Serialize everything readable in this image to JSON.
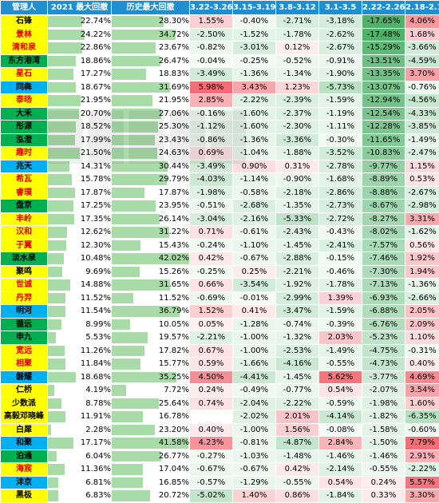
{
  "headers": [
    "管理人",
    "2021 最大回撤",
    "历史最大回撤",
    "3.22-3.26",
    "3.15-3.19",
    "3.8-3.12",
    "3.1-3.5",
    "2.22-2.26",
    "2.18-2.19"
  ],
  "colors": {
    "header_bg": "#1f8fcf",
    "mgr_yellow": "#ffff00",
    "mgr_green": "#00b050",
    "mgr_cyan": "#00b0f0",
    "bar_green": "#a8dba8"
  },
  "rows": [
    {
      "name": "石锋",
      "name_bg": "yellow",
      "name_color": "#000000",
      "dd2021": "22.74%",
      "dd2021_v": 22.74,
      "ddhist": "28.30%",
      "ddhist_v": 28.3,
      "w": [
        "1.55%",
        "-0.40%",
        "-2.71%",
        "-3.18%",
        "-17.65%",
        "4.06%"
      ]
    },
    {
      "name": "景林",
      "name_bg": "yellow",
      "name_color": "#e00000",
      "dd2021": "24.22%",
      "dd2021_v": 24.22,
      "ddhist": "34.72%",
      "ddhist_v": 34.72,
      "w": [
        "-2.50%",
        "-1.52%",
        "-1.78%",
        "-2.62%",
        "-17.48%",
        "1.68%"
      ]
    },
    {
      "name": "清和泉",
      "name_bg": "yellow",
      "name_color": "#e00000",
      "dd2021": "22.86%",
      "dd2021_v": 22.86,
      "ddhist": "23.67%",
      "ddhist_v": 23.67,
      "w": [
        "-0.82%",
        "-3.01%",
        "0.12%",
        "-2.67%",
        "-15.29%",
        "-3.66%"
      ]
    },
    {
      "name": "东方港湾",
      "name_bg": "green",
      "name_color": "#000000",
      "dd2021": "18.86%",
      "dd2021_v": 18.86,
      "ddhist": "26.47%",
      "ddhist_v": 26.47,
      "w": [
        "-0.04%",
        "-0.25%",
        "-0.52%",
        "-0.91%",
        "-13.51%",
        "-4.59%"
      ]
    },
    {
      "name": "星石",
      "name_bg": "yellow",
      "name_color": "#e00000",
      "dd2021": "17.27%",
      "dd2021_v": 17.27,
      "ddhist": "18.83%",
      "ddhist_v": 18.83,
      "w": [
        "-3.49%",
        "-1.36%",
        "-1.34%",
        "-1.90%",
        "-13.35%",
        "3.70%"
      ]
    },
    {
      "name": "同犇",
      "name_bg": "cyan",
      "name_color": "#000000",
      "dd2021": "18.67%",
      "dd2021_v": 18.67,
      "ddhist": "31.69%",
      "ddhist_v": 31.69,
      "w": [
        "5.98%",
        "3.43%",
        "1.23%",
        "-5.73%",
        "-13.07%",
        "-0.76%"
      ]
    },
    {
      "name": "泰旸",
      "name_bg": "yellow",
      "name_color": "#e00000",
      "dd2021": "21.95%",
      "dd2021_v": 21.95,
      "ddhist": "21.95%",
      "ddhist_v": 21.95,
      "w": [
        "2.85%",
        "-2.22%",
        "-2.39%",
        "-1.59%",
        "-12.94%",
        "-4.56%"
      ]
    },
    {
      "name": "大禾",
      "name_bg": "green",
      "name_color": "#000000",
      "dd2021": "20.70%",
      "dd2021_v": 20.7,
      "ddhist": "27.06%",
      "ddhist_v": 27.06,
      "w": [
        "-0.16%",
        "-1.60%",
        "-2.37%",
        "-1.19%",
        "-12.54%",
        "-4.33%"
      ]
    },
    {
      "name": "彤源",
      "name_bg": "green",
      "name_color": "#000000",
      "dd2021": "18.52%",
      "dd2021_v": 18.52,
      "ddhist": "25.30%",
      "ddhist_v": 25.3,
      "w": [
        "-1.12%",
        "-1.60%",
        "-2.30%",
        "-1.11%",
        "-12.28%",
        "-3.85%"
      ]
    },
    {
      "name": "泓澄",
      "name_bg": "green",
      "name_color": "#000000",
      "dd2021": "17.99%",
      "dd2021_v": 17.99,
      "ddhist": "23.43%",
      "ddhist_v": 23.43,
      "w": [
        "-0.86%",
        "-1.36%",
        "-3.36%",
        "-0.30%",
        "-11.65%",
        "-1.49%"
      ]
    },
    {
      "name": "趣时",
      "name_bg": "yellow",
      "name_color": "#e00000",
      "dd2021": "21.50%",
      "dd2021_v": 21.5,
      "ddhist": "24.63%",
      "ddhist_v": 24.63,
      "w": [
        "0.69%",
        "-1.04%",
        "-1.88%",
        "-3.52%",
        "-10.83%",
        "-2.47%"
      ]
    },
    {
      "name": "兆天",
      "name_bg": "cyan",
      "name_color": "#000000",
      "dd2021": "14.31%",
      "dd2021_v": 14.31,
      "ddhist": "30.44%",
      "ddhist_v": 30.44,
      "w": [
        "-3.49%",
        "0.90%",
        "0.31%",
        "-2.78%",
        "-9.77%",
        "1.15%"
      ]
    },
    {
      "name": "希瓦",
      "name_bg": "yellow",
      "name_color": "#e00000",
      "dd2021": "15.78%",
      "dd2021_v": 15.78,
      "ddhist": "29.79%",
      "ddhist_v": 29.79,
      "w": [
        "-4.03%",
        "-1.14%",
        "-0.90%",
        "-1.68%",
        "-8.89%",
        "0.53%"
      ]
    },
    {
      "name": "睿璞",
      "name_bg": "yellow",
      "name_color": "#e00000",
      "dd2021": "17.87%",
      "dd2021_v": 17.87,
      "ddhist": "17.87%",
      "ddhist_v": 17.87,
      "w": [
        "-1.98%",
        "-0.58%",
        "-2.18%",
        "-2.86%",
        "-8.88%",
        "-2.67%"
      ]
    },
    {
      "name": "盘京",
      "name_bg": "green",
      "name_color": "#000000",
      "dd2021": "17.25%",
      "dd2021_v": 17.25,
      "ddhist": "23.95%",
      "ddhist_v": 23.95,
      "w": [
        "-0.51%",
        "-2.68%",
        "-1.35%",
        "-2.73%",
        "-8.67%",
        "-2.98%"
      ]
    },
    {
      "name": "丰岭",
      "name_bg": "yellow",
      "name_color": "#e00000",
      "dd2021": "17.35%",
      "dd2021_v": 17.35,
      "ddhist": "26.14%",
      "ddhist_v": 26.14,
      "w": [
        "-3.04%",
        "-2.16%",
        "-5.33%",
        "-2.72%",
        "-8.27%",
        "3.31%"
      ]
    },
    {
      "name": "汉和",
      "name_bg": "yellow",
      "name_color": "#e00000",
      "dd2021": "12.62%",
      "dd2021_v": 12.62,
      "ddhist": "31.22%",
      "ddhist_v": 31.22,
      "w": [
        "0.71%",
        "-0.61%",
        "-2.43%",
        "-0.43%",
        "-8.02%",
        "-1.62%"
      ]
    },
    {
      "name": "于翼",
      "name_bg": "yellow",
      "name_color": "#e00000",
      "dd2021": "12.30%",
      "dd2021_v": 12.3,
      "ddhist": "15.43%",
      "ddhist_v": 15.43,
      "w": [
        "-0.24%",
        "-1.10%",
        "-1.45%",
        "-2.41%",
        "-7.57%",
        "0.56%"
      ]
    },
    {
      "name": "淡水泉",
      "name_bg": "green",
      "name_color": "#000000",
      "dd2021": "10.48%",
      "dd2021_v": 10.48,
      "ddhist": "42.02%",
      "ddhist_v": 42.02,
      "w": [
        "0.42%",
        "-0.67%",
        "-2.88%",
        "-0.15%",
        "-7.46%",
        "1.92%"
      ]
    },
    {
      "name": "聚鸣",
      "name_bg": "yellow",
      "name_color": "#000000",
      "dd2021": "9.69%",
      "dd2021_v": 9.69,
      "ddhist": "15.26%",
      "ddhist_v": 15.26,
      "w": [
        "-0.25%",
        "0.25%",
        "-2.21%",
        "-0.46%",
        "-7.30%",
        "1.94%"
      ]
    },
    {
      "name": "世诚",
      "name_bg": "yellow",
      "name_color": "#e00000",
      "dd2021": "14.88%",
      "dd2021_v": 14.88,
      "ddhist": "31.65%",
      "ddhist_v": 31.65,
      "w": [
        "0.66%",
        "-3.54%",
        "-1.92%",
        "-1.78%",
        "-7.13%",
        "-1.36%"
      ]
    },
    {
      "name": "丹羿",
      "name_bg": "yellow",
      "name_color": "#e00000",
      "dd2021": "11.52%",
      "dd2021_v": 11.52,
      "ddhist": "11.52%",
      "ddhist_v": 11.52,
      "w": [
        "-0.69%",
        "-0.01%",
        "-2.99%",
        "1.39%",
        "-6.93%",
        "-2.66%"
      ]
    },
    {
      "name": "明河",
      "name_bg": "cyan",
      "name_color": "#000000",
      "dd2021": "11.54%",
      "dd2021_v": 11.54,
      "ddhist": "36.79%",
      "ddhist_v": 36.79,
      "w": [
        "1.52%",
        "0.41%",
        "-3.47%",
        "-1.59%",
        "-6.88%",
        "2.05%"
      ]
    },
    {
      "name": "循远",
      "name_bg": "green",
      "name_color": "#000000",
      "dd2021": "8.99%",
      "dd2021_v": 8.99,
      "ddhist": "10.05%",
      "ddhist_v": 10.05,
      "w": [
        "0.05%",
        "-1.28%",
        "-0.74%",
        "-0.39%",
        "-6.76%",
        "2.09%"
      ]
    },
    {
      "name": "申九",
      "name_bg": "green",
      "name_color": "#000000",
      "dd2021": "5.53%",
      "dd2021_v": 5.53,
      "ddhist": "19.57%",
      "ddhist_v": 19.57,
      "w": [
        "-2.21%",
        "-1.00%",
        "-1.32%",
        "2.03%",
        "-5.23%",
        "1.10%"
      ]
    },
    {
      "name": "宽远",
      "name_bg": "yellow",
      "name_color": "#e00000",
      "dd2021": "11.26%",
      "dd2021_v": 11.26,
      "ddhist": "17.82%",
      "ddhist_v": 17.82,
      "w": [
        "0.67%",
        "-1.00%",
        "-2.53%",
        "-1.49%",
        "-4.75%",
        "-0.31%"
      ]
    },
    {
      "name": "相聚",
      "name_bg": "yellow",
      "name_color": "#e00000",
      "dd2021": "11.84%",
      "dd2021_v": 11.84,
      "ddhist": "15.77%",
      "ddhist_v": 15.77,
      "w": [
        "0.59%",
        "-1.66%",
        "-4.16%",
        "-0.55%",
        "-4.73%",
        "0.40%"
      ]
    },
    {
      "name": "磐耀",
      "name_bg": "cyan",
      "name_color": "#000000",
      "dd2021": "18.68%",
      "dd2021_v": 18.68,
      "ddhist": "35.25%",
      "ddhist_v": 35.25,
      "w": [
        "4.50%",
        "-4.41%",
        "-1.45%",
        "5.62%",
        "-3.77%",
        "4.69%"
      ]
    },
    {
      "name": "仁桥",
      "name_bg": "yellow",
      "name_color": "#000000",
      "dd2021": "4.19%",
      "dd2021_v": 4.19,
      "ddhist": "7.72%",
      "ddhist_v": 7.72,
      "w": [
        "0.24%",
        "-0.49%",
        "-0.77%",
        "0.54%",
        "-2.07%",
        "3.54%"
      ]
    },
    {
      "name": "少数派",
      "name_bg": "yellow",
      "name_color": "#000000",
      "dd2021": "8.78%",
      "dd2021_v": 8.78,
      "ddhist": "25.64%",
      "ddhist_v": 25.64,
      "w": [
        "0.74%",
        "-2.04%",
        "-2.22%",
        "-0.59%",
        "-1.98%",
        "1.60%"
      ]
    },
    {
      "name": "高毅邓晓峰",
      "name_bg": "yellow",
      "name_color": "#000000",
      "dd2021": "11.91%",
      "dd2021_v": 11.91,
      "ddhist": "16.78%",
      "ddhist_v": 16.78,
      "w": [
        "",
        "-2.02%",
        "2.01%",
        "-4.14%",
        "-1.82%",
        "-6.35%"
      ]
    },
    {
      "name": "白犀",
      "name_bg": "yellow",
      "name_color": "#000000",
      "dd2021": "2.28%",
      "dd2021_v": 2.28,
      "ddhist": "23.20%",
      "ddhist_v": 23.2,
      "w": [
        "0.40%",
        "-1.00%",
        "1.56%",
        "-0.08%",
        "-1.58%",
        "-0.60%"
      ]
    },
    {
      "name": "和聚",
      "name_bg": "cyan",
      "name_color": "#000000",
      "dd2021": "17.17%",
      "dd2021_v": 17.17,
      "ddhist": "41.58%",
      "ddhist_v": 41.58,
      "w": [
        "4.23%",
        "-0.81%",
        "-4.87%",
        "2.84%",
        "-1.50%",
        "7.79%"
      ]
    },
    {
      "name": "泊通",
      "name_bg": "green",
      "name_color": "#000000",
      "dd2021": "6.04%",
      "dd2021_v": 6.04,
      "ddhist": "26.77%",
      "ddhist_v": 26.77,
      "w": [
        "-0.27%",
        "-1.03%",
        "-1.48%",
        "-1.46%",
        "-1.46%",
        "2.91%"
      ]
    },
    {
      "name": "海宸",
      "name_bg": "yellow",
      "name_color": "#e00000",
      "dd2021": "11.36%",
      "dd2021_v": 11.36,
      "ddhist": "17.04%",
      "ddhist_v": 17.04,
      "w": [
        "-0.67%",
        "-0.67%",
        "0.42%",
        "-2.14%",
        "-0.55%",
        "-2.22%"
      ]
    },
    {
      "name": "沣京",
      "name_bg": "cyan",
      "name_color": "#000000",
      "dd2021": "6.81%",
      "dd2021_v": 6.81,
      "ddhist": "16.85%",
      "ddhist_v": 16.85,
      "w": [
        "-0.57%",
        "-1.29%",
        "-0.55%",
        "0.54%",
        "0.24%",
        "5.57%"
      ]
    },
    {
      "name": "黑极",
      "name_bg": "yellow",
      "name_color": "#000000",
      "dd2021": "6.83%",
      "dd2021_v": 6.83,
      "ddhist": "20.72%",
      "ddhist_v": 20.72,
      "w": [
        "-5.02%",
        "1.40%",
        "0.86%",
        "-1.84%",
        "0.33%",
        "3.30%"
      ]
    }
  ]
}
